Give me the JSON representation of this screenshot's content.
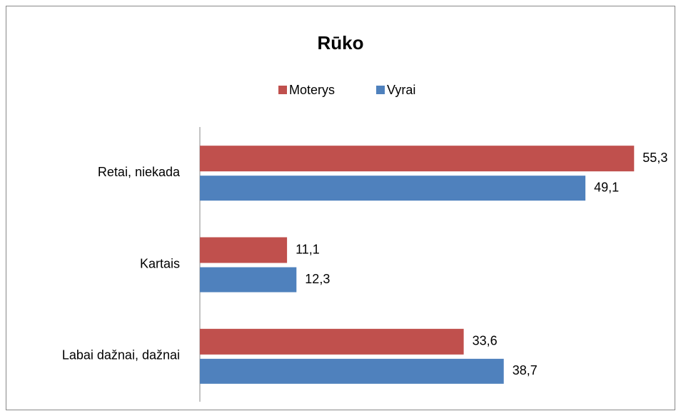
{
  "chart_data": {
    "type": "hbar",
    "title": "Rūko",
    "categories": [
      "Retai, niekada",
      "Kartais",
      "Labai dažnai, dažnai"
    ],
    "series": [
      {
        "name": "Moterys",
        "color": "#c0504d",
        "values": [
          55.3,
          11.1,
          33.6
        ],
        "value_labels": [
          "55,3",
          "11,1",
          "33,6"
        ]
      },
      {
        "name": "Vyrai",
        "color": "#4f81bd",
        "values": [
          49.1,
          12.3,
          38.7
        ],
        "value_labels": [
          "49,1",
          "12,3",
          "38,7"
        ]
      }
    ],
    "xlim": [
      0,
      60
    ],
    "legend": "top"
  }
}
